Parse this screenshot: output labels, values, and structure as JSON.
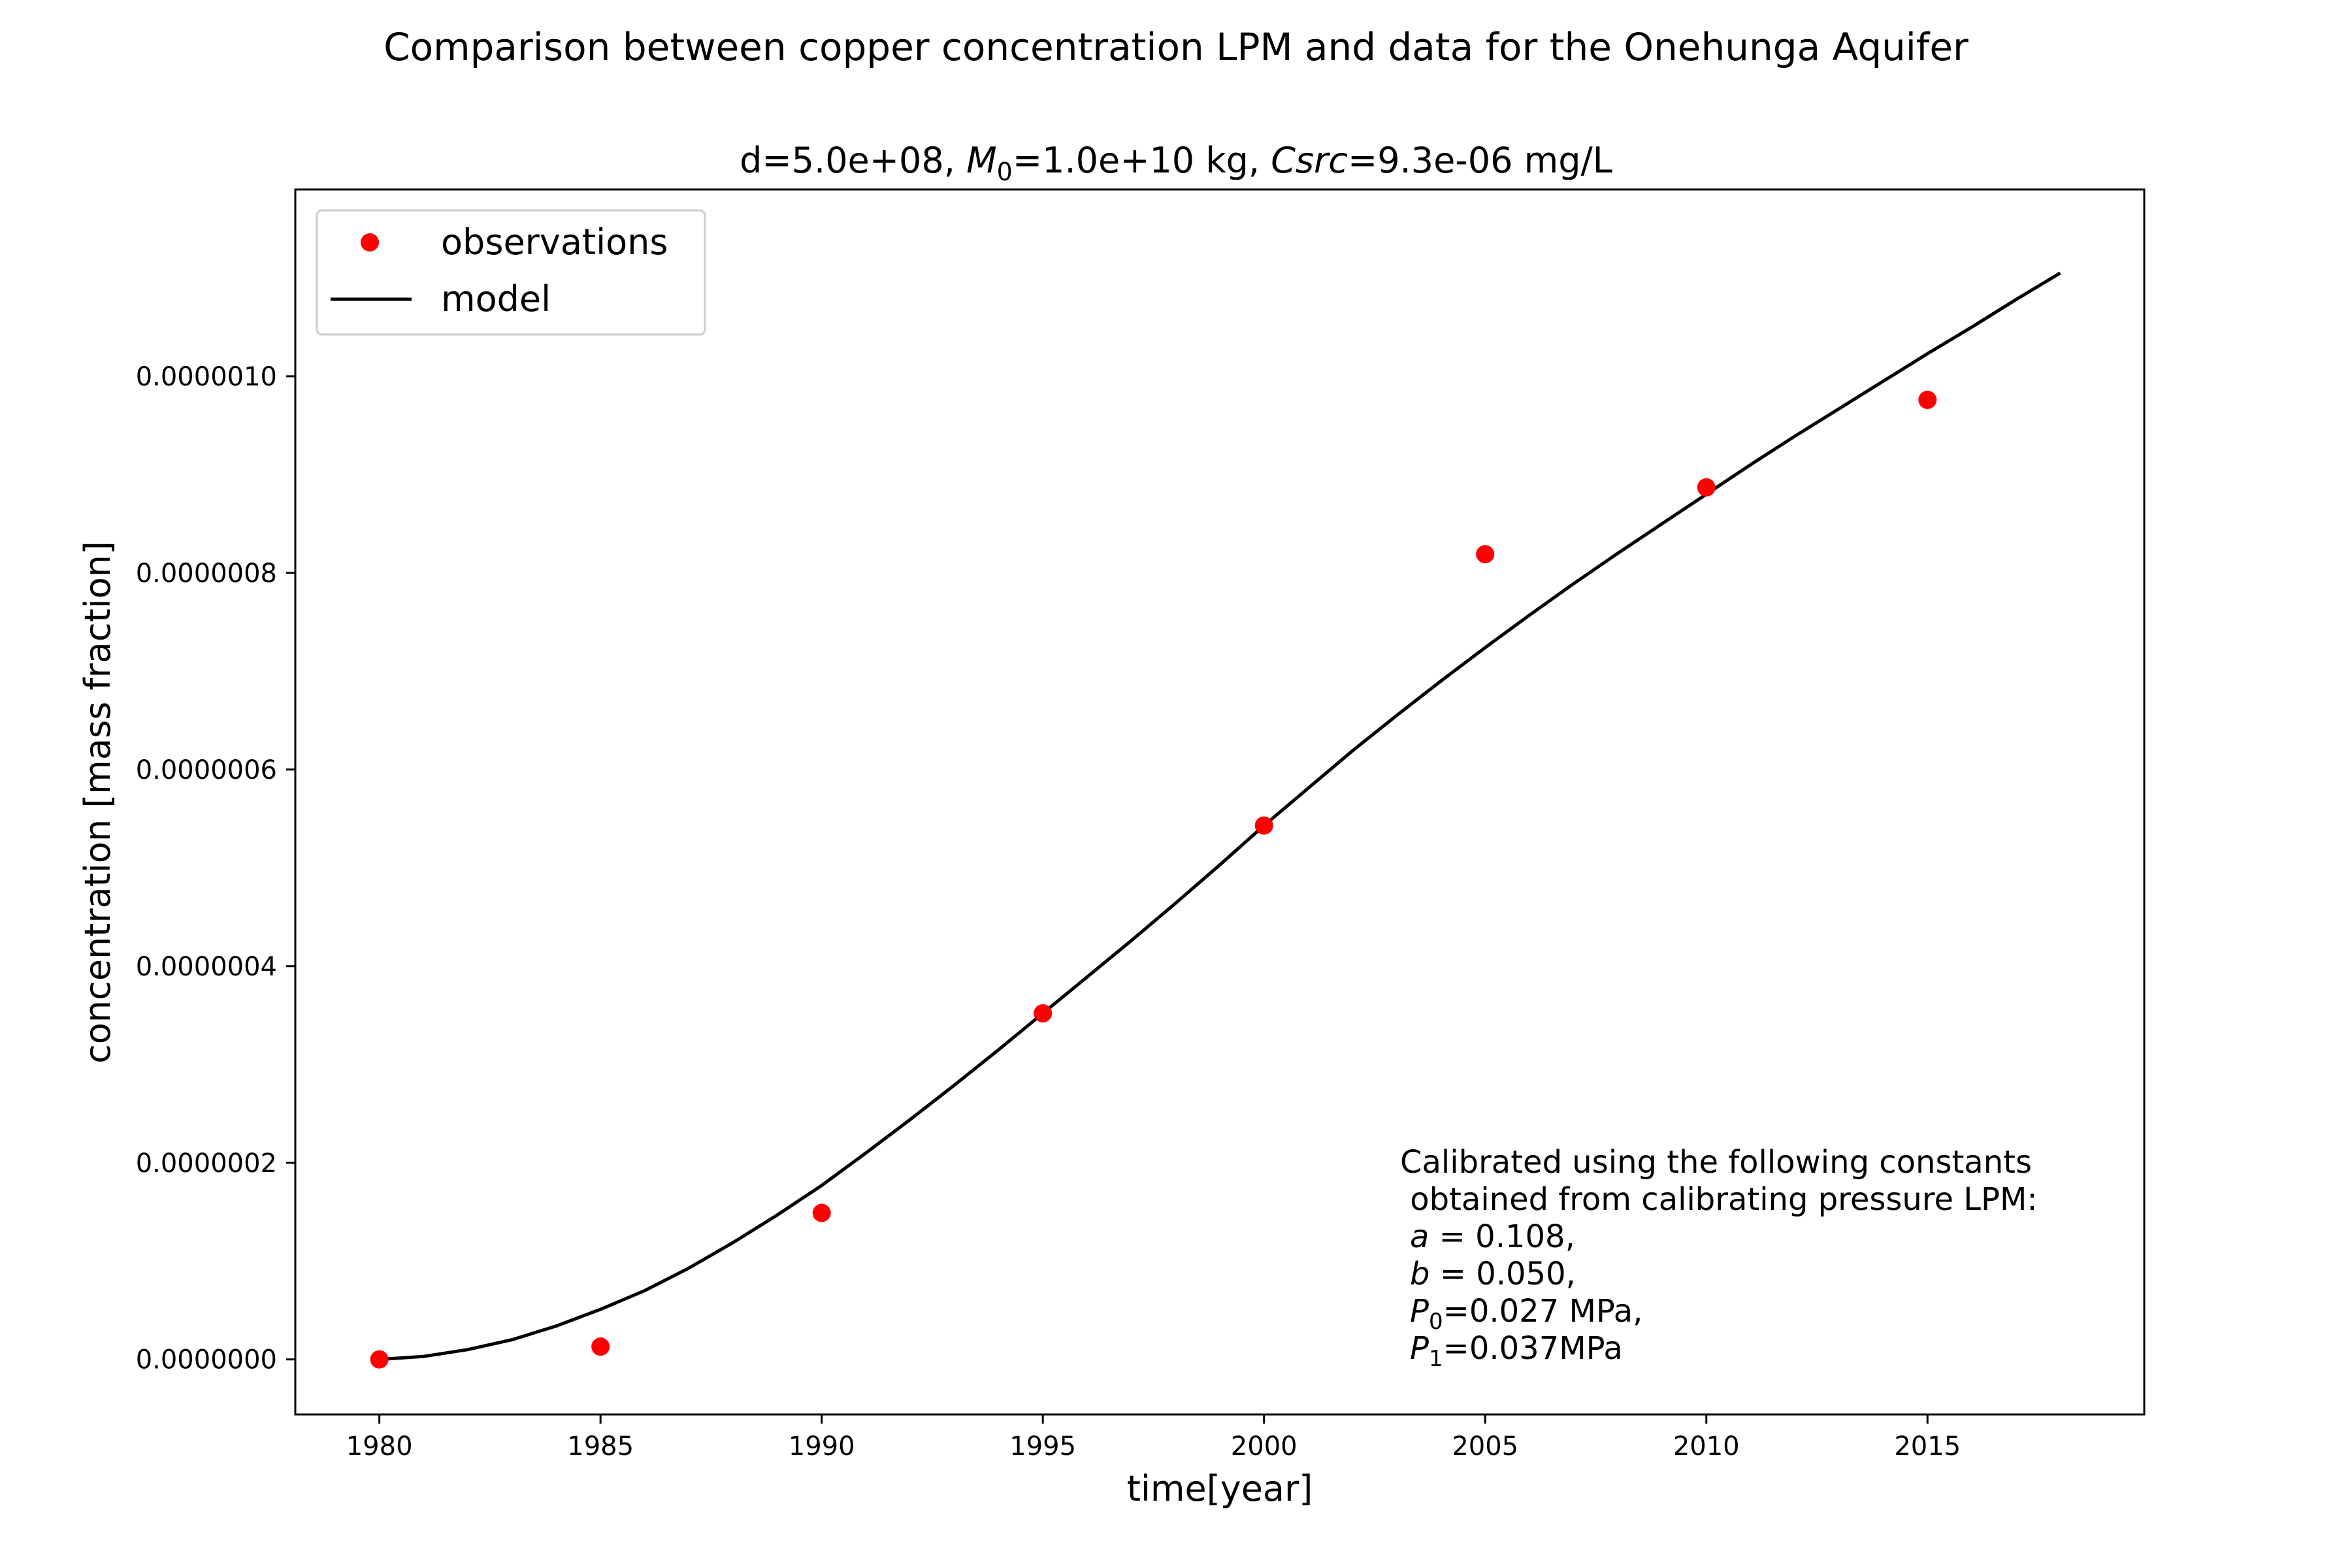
{
  "chart_data": {
    "type": "scatter",
    "suptitle": "Comparison between copper concentration LPM and data for the Onehunga Aquifer",
    "title": {
      "d_part": "d=5.0e+08, ",
      "m_symbol": "M",
      "m_sub": "0",
      "m_value": "=1.0e+10 kg, ",
      "csrc_symbol": "Csrc",
      "csrc_value": "=9.3e-06 mg/L"
    },
    "xlabel": "time[year]",
    "ylabel": "concentration [mass fraction]",
    "xlim": [
      1978.1,
      2019.9
    ],
    "ylim": [
      -5.6e-08,
      1.19e-06
    ],
    "x_ticks": [
      1980,
      1985,
      1990,
      1995,
      2000,
      2005,
      2010,
      2015
    ],
    "x_tick_labels": [
      "1980",
      "1985",
      "1990",
      "1995",
      "2000",
      "2005",
      "2010",
      "2015"
    ],
    "y_ticks": [
      0,
      2e-07,
      4e-07,
      6e-07,
      8e-07,
      1e-06
    ],
    "y_tick_labels": [
      "0.0000000",
      "0.0000002",
      "0.0000004",
      "0.0000006",
      "0.0000008",
      "0.0000010"
    ],
    "grid": false,
    "legend_position": "top-left",
    "series": [
      {
        "name": "observations",
        "kind": "scatter",
        "color": "#ff0000",
        "x": [
          1980,
          1985,
          1990,
          1995,
          2000,
          2005,
          2010,
          2015
        ],
        "y": [
          0.0,
          1.3e-08,
          1.49e-07,
          3.52e-07,
          5.43e-07,
          8.19e-07,
          8.87e-07,
          9.76e-07
        ]
      },
      {
        "name": "model",
        "kind": "line",
        "color": "#000000",
        "x": [
          1980,
          1981,
          1982,
          1983,
          1984,
          1985,
          1986,
          1987,
          1988,
          1989,
          1990,
          1991,
          1992,
          1993,
          1994,
          1995,
          1996,
          1997,
          1998,
          1999,
          2000,
          2001,
          2002,
          2003,
          2004,
          2005,
          2006,
          2007,
          2008,
          2009,
          2010,
          2011,
          2012,
          2013,
          2014,
          2015,
          2016,
          2017,
          2018
        ],
        "y": [
          0.0,
          3e-09,
          1e-08,
          2e-08,
          3.4e-08,
          5.1e-08,
          7e-08,
          9.3e-08,
          1.19e-07,
          1.47e-07,
          1.77e-07,
          2.1e-07,
          2.44e-07,
          2.79e-07,
          3.15e-07,
          3.52e-07,
          3.89e-07,
          4.26e-07,
          4.64e-07,
          5.03e-07,
          5.43e-07,
          5.81e-07,
          6.19e-07,
          6.55e-07,
          6.9e-07,
          7.24e-07,
          7.57e-07,
          7.89e-07,
          8.2e-07,
          8.5e-07,
          8.8e-07,
          9.1e-07,
          9.39e-07,
          9.67e-07,
          9.95e-07,
          1.023e-06,
          1.05e-06,
          1.078e-06,
          1.105e-06
        ]
      }
    ],
    "annotation": {
      "line1": "Calibrated using the following constants",
      "line2": " obtained from calibrating pressure LPM:",
      "a_symbol": "a",
      "a_value": " = 0.108,",
      "b_symbol": "b",
      "b_value": " = 0.050,",
      "p0_symbol": "P",
      "p0_sub": "0",
      "p0_value": "=0.027 MPa,",
      "p1_symbol": "P",
      "p1_sub": "1",
      "p1_value": "=0.037MPa"
    }
  }
}
